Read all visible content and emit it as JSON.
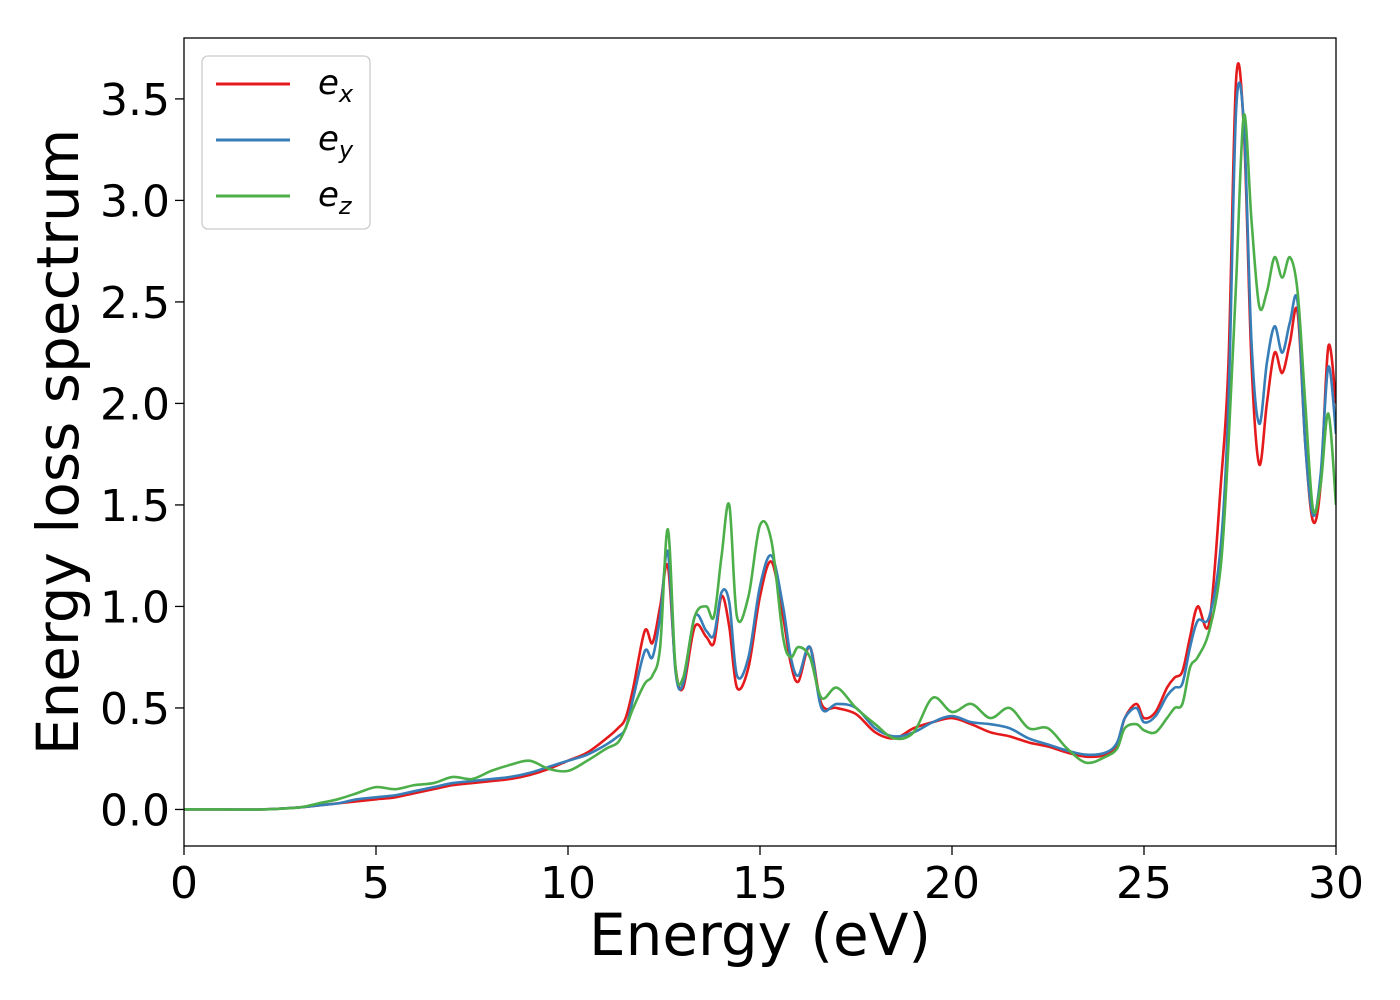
{
  "chart_data": {
    "type": "line",
    "xlabel": "Energy (eV)",
    "ylabel": "Energy loss spectrum",
    "xlim": [
      0,
      30
    ],
    "ylim": [
      -0.18,
      3.8
    ],
    "xticks": [
      0,
      5,
      10,
      15,
      20,
      25,
      30
    ],
    "xtick_labels": [
      "0",
      "5",
      "10",
      "15",
      "20",
      "25",
      "30"
    ],
    "yticks": [
      0.0,
      0.5,
      1.0,
      1.5,
      2.0,
      2.5,
      3.0,
      3.5
    ],
    "ytick_labels": [
      "0.0",
      "0.5",
      "1.0",
      "1.5",
      "2.0",
      "2.5",
      "3.0",
      "3.5"
    ],
    "grid": false,
    "legend": {
      "placement": "top-left"
    },
    "series": [
      {
        "name": "e",
        "subscript": "x",
        "color": "#e41a1c",
        "x": [
          0,
          1,
          2,
          3,
          3.5,
          4,
          4.5,
          5,
          5.5,
          6,
          6.5,
          7,
          7.5,
          8,
          8.5,
          9,
          9.5,
          10,
          10.5,
          11,
          11.3,
          11.5,
          11.7,
          12,
          12.2,
          12.4,
          12.6,
          12.8,
          13,
          13.3,
          13.6,
          13.8,
          14,
          14.2,
          14.4,
          14.7,
          15,
          15.3,
          15.6,
          15.8,
          16,
          16.3,
          16.6,
          17,
          17.5,
          18,
          18.5,
          19,
          19.5,
          20,
          20.5,
          21,
          21.5,
          22,
          22.5,
          23,
          23.5,
          24,
          24.3,
          24.5,
          24.8,
          25,
          25.3,
          25.6,
          25.8,
          26,
          26.2,
          26.4,
          26.7,
          27,
          27.2,
          27.4,
          27.6,
          27.8,
          28,
          28.2,
          28.4,
          28.6,
          28.8,
          29,
          29.2,
          29.4,
          29.6,
          29.8,
          30
        ],
        "values": [
          0,
          0,
          0,
          0.01,
          0.02,
          0.03,
          0.04,
          0.05,
          0.06,
          0.08,
          0.1,
          0.12,
          0.13,
          0.14,
          0.15,
          0.17,
          0.2,
          0.24,
          0.28,
          0.35,
          0.4,
          0.45,
          0.6,
          0.88,
          0.82,
          1.0,
          1.2,
          0.7,
          0.6,
          0.9,
          0.85,
          0.82,
          1.05,
          0.9,
          0.6,
          0.7,
          1.05,
          1.22,
          0.95,
          0.72,
          0.63,
          0.8,
          0.52,
          0.5,
          0.47,
          0.38,
          0.35,
          0.4,
          0.43,
          0.45,
          0.42,
          0.38,
          0.36,
          0.33,
          0.31,
          0.28,
          0.26,
          0.27,
          0.32,
          0.45,
          0.52,
          0.45,
          0.48,
          0.6,
          0.65,
          0.68,
          0.85,
          1.0,
          0.92,
          1.6,
          2.2,
          3.6,
          3.35,
          2.2,
          1.7,
          2.0,
          2.25,
          2.15,
          2.3,
          2.45,
          1.8,
          1.42,
          1.6,
          2.28,
          2.0
        ]
      },
      {
        "name": "e",
        "subscript": "y",
        "color": "#377eb8",
        "x": [
          0,
          1,
          2,
          3,
          3.5,
          4,
          4.5,
          5,
          5.5,
          6,
          6.5,
          7,
          7.5,
          8,
          8.5,
          9,
          9.5,
          10,
          10.5,
          11,
          11.3,
          11.5,
          11.7,
          12,
          12.2,
          12.4,
          12.6,
          12.8,
          13,
          13.3,
          13.6,
          13.8,
          14,
          14.2,
          14.4,
          14.7,
          15,
          15.3,
          15.6,
          15.8,
          16,
          16.3,
          16.6,
          17,
          17.5,
          18,
          18.5,
          19,
          19.5,
          20,
          20.5,
          21,
          21.5,
          22,
          22.5,
          23,
          23.5,
          24,
          24.3,
          24.5,
          24.8,
          25,
          25.3,
          25.6,
          25.8,
          26,
          26.2,
          26.4,
          26.7,
          27,
          27.2,
          27.4,
          27.6,
          27.8,
          28,
          28.2,
          28.4,
          28.6,
          28.8,
          29,
          29.2,
          29.4,
          29.6,
          29.8,
          30
        ],
        "values": [
          0,
          0,
          0,
          0.01,
          0.02,
          0.03,
          0.05,
          0.06,
          0.07,
          0.09,
          0.11,
          0.13,
          0.14,
          0.15,
          0.16,
          0.18,
          0.21,
          0.24,
          0.27,
          0.32,
          0.36,
          0.4,
          0.55,
          0.78,
          0.75,
          0.95,
          1.27,
          0.68,
          0.62,
          0.95,
          0.88,
          0.86,
          1.07,
          1.02,
          0.66,
          0.75,
          1.1,
          1.25,
          1.0,
          0.75,
          0.66,
          0.8,
          0.5,
          0.52,
          0.5,
          0.4,
          0.36,
          0.38,
          0.43,
          0.46,
          0.43,
          0.42,
          0.4,
          0.35,
          0.32,
          0.29,
          0.27,
          0.28,
          0.33,
          0.45,
          0.5,
          0.43,
          0.46,
          0.56,
          0.6,
          0.62,
          0.8,
          0.93,
          0.95,
          1.3,
          2.0,
          3.45,
          3.38,
          2.3,
          1.9,
          2.2,
          2.38,
          2.25,
          2.4,
          2.5,
          1.8,
          1.45,
          1.65,
          2.18,
          1.85
        ]
      },
      {
        "name": "e",
        "subscript": "z",
        "color": "#4daf4a",
        "x": [
          0,
          1,
          2,
          3,
          3.5,
          4,
          4.5,
          5,
          5.5,
          6,
          6.5,
          7,
          7.5,
          8,
          8.5,
          9,
          9.5,
          10,
          10.5,
          11,
          11.3,
          11.5,
          11.7,
          12,
          12.2,
          12.4,
          12.6,
          12.8,
          13,
          13.3,
          13.6,
          13.8,
          14,
          14.2,
          14.4,
          14.7,
          15,
          15.3,
          15.6,
          15.8,
          16,
          16.3,
          16.6,
          17,
          17.5,
          18,
          18.5,
          19,
          19.5,
          20,
          20.5,
          21,
          21.5,
          22,
          22.5,
          23,
          23.5,
          24,
          24.3,
          24.5,
          24.8,
          25,
          25.3,
          25.6,
          25.8,
          26,
          26.2,
          26.4,
          26.7,
          27,
          27.2,
          27.4,
          27.6,
          27.8,
          28,
          28.2,
          28.4,
          28.6,
          28.8,
          29,
          29.2,
          29.4,
          29.6,
          29.8,
          30
        ],
        "values": [
          0,
          0,
          0,
          0.01,
          0.03,
          0.05,
          0.08,
          0.11,
          0.1,
          0.12,
          0.13,
          0.16,
          0.15,
          0.19,
          0.22,
          0.24,
          0.2,
          0.19,
          0.24,
          0.3,
          0.33,
          0.4,
          0.5,
          0.62,
          0.66,
          0.8,
          1.38,
          0.7,
          0.65,
          0.95,
          1.0,
          0.95,
          1.25,
          1.5,
          0.95,
          1.05,
          1.4,
          1.32,
          0.85,
          0.75,
          0.8,
          0.75,
          0.55,
          0.6,
          0.5,
          0.42,
          0.35,
          0.38,
          0.55,
          0.48,
          0.52,
          0.45,
          0.5,
          0.4,
          0.4,
          0.3,
          0.23,
          0.26,
          0.3,
          0.4,
          0.42,
          0.39,
          0.38,
          0.45,
          0.5,
          0.52,
          0.7,
          0.75,
          0.88,
          1.2,
          1.8,
          2.6,
          3.42,
          2.9,
          2.48,
          2.55,
          2.72,
          2.62,
          2.72,
          2.55,
          2.0,
          1.48,
          1.6,
          1.95,
          1.5
        ]
      }
    ]
  }
}
